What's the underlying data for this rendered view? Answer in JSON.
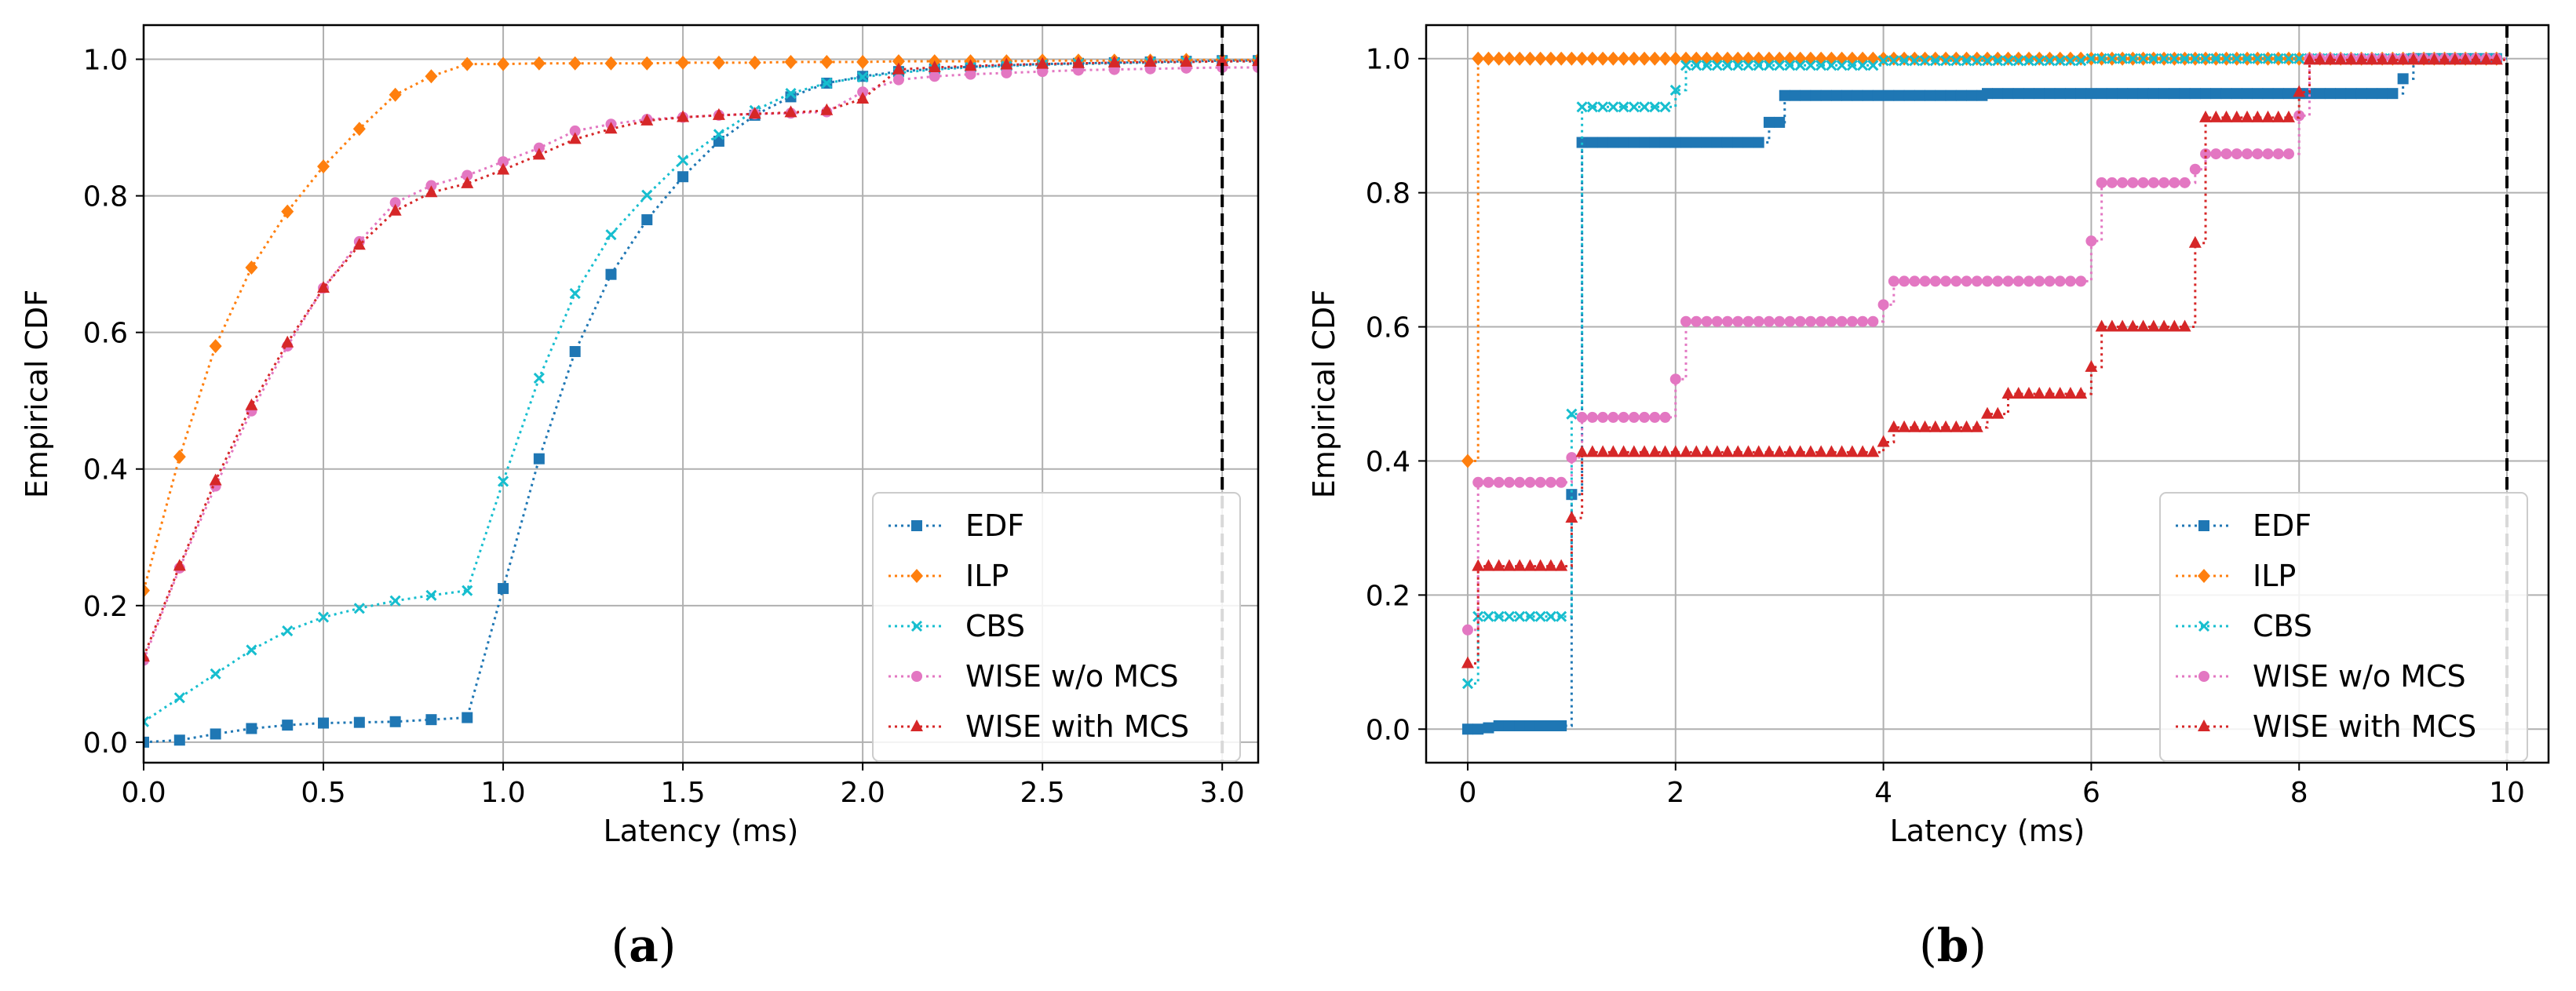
{
  "colors": {
    "EDF": "#1f77b4",
    "ILP": "#ff7f0e",
    "CBS": "#17becf",
    "WISE w/o MCS": "#e377c2",
    "WISE with MCS": "#d62728",
    "grid": "#b0b0b0",
    "deadline": "#000000"
  },
  "markers": {
    "EDF": "square",
    "ILP": "diamond",
    "CBS": "x",
    "WISE w/o MCS": "circle",
    "WISE with MCS": "triangle"
  },
  "chart_data": [
    {
      "type": "line",
      "panel_label": "a",
      "xlabel": "Latency (ms)",
      "ylabel": "Empirical CDF",
      "xlim": [
        0,
        3.1
      ],
      "ylim": [
        -0.03,
        1.05
      ],
      "xticks": [
        0,
        0.5,
        1.0,
        1.5,
        2.0,
        2.5,
        3.0
      ],
      "xtick_labels": [
        "0.0",
        "0.5",
        "1.0",
        "1.5",
        "2.0",
        "2.5",
        "3.0"
      ],
      "yticks": [
        0,
        0.2,
        0.4,
        0.6,
        0.8,
        1.0
      ],
      "ytick_labels": [
        "0.0",
        "0.2",
        "0.4",
        "0.6",
        "0.8",
        "1.0"
      ],
      "grid": true,
      "legend_position": "lower-right",
      "deadline_x": 3.0,
      "series": [
        {
          "name": "EDF",
          "x": [
            0,
            0.1,
            0.2,
            0.3,
            0.4,
            0.5,
            0.6,
            0.7,
            0.8,
            0.9,
            1.0,
            1.1,
            1.2,
            1.3,
            1.4,
            1.5,
            1.6,
            1.7,
            1.8,
            1.9,
            2.0,
            2.1,
            2.2,
            2.3,
            2.4,
            2.5,
            2.6,
            2.7,
            2.8,
            2.9,
            3.0,
            3.1
          ],
          "y": [
            0,
            0.003,
            0.012,
            0.02,
            0.025,
            0.028,
            0.029,
            0.03,
            0.033,
            0.036,
            0.225,
            0.415,
            0.572,
            0.685,
            0.765,
            0.828,
            0.88,
            0.918,
            0.945,
            0.965,
            0.975,
            0.982,
            0.986,
            0.989,
            0.991,
            0.993,
            0.994,
            0.995,
            0.996,
            0.997,
            0.998,
            0.998
          ]
        },
        {
          "name": "ILP",
          "x": [
            0,
            0.1,
            0.2,
            0.3,
            0.4,
            0.5,
            0.6,
            0.7,
            0.8,
            0.9,
            1.0,
            1.1,
            1.2,
            1.3,
            1.4,
            1.5,
            1.6,
            1.7,
            1.8,
            1.9,
            2.0,
            2.1,
            2.2,
            2.3,
            2.4,
            2.5,
            2.6,
            2.7,
            2.8,
            2.9,
            3.0,
            3.1
          ],
          "y": [
            0.222,
            0.418,
            0.58,
            0.695,
            0.777,
            0.843,
            0.898,
            0.948,
            0.975,
            0.993,
            0.993,
            0.994,
            0.994,
            0.994,
            0.994,
            0.995,
            0.995,
            0.995,
            0.996,
            0.996,
            0.996,
            0.997,
            0.997,
            0.997,
            0.997,
            0.998,
            0.998,
            0.998,
            0.998,
            0.999,
            0.999,
            0.999
          ]
        },
        {
          "name": "CBS",
          "x": [
            0,
            0.1,
            0.2,
            0.3,
            0.4,
            0.5,
            0.6,
            0.7,
            0.8,
            0.9,
            1.0,
            1.1,
            1.2,
            1.3,
            1.4,
            1.5,
            1.6,
            1.7,
            1.8,
            1.9,
            2.0,
            2.1,
            2.2,
            2.3,
            2.4,
            2.5,
            2.6,
            2.7,
            2.8,
            2.9,
            3.0,
            3.1
          ],
          "y": [
            0.03,
            0.065,
            0.1,
            0.135,
            0.163,
            0.183,
            0.196,
            0.207,
            0.215,
            0.222,
            0.382,
            0.533,
            0.657,
            0.743,
            0.801,
            0.852,
            0.89,
            0.925,
            0.95,
            0.965,
            0.974,
            0.98,
            0.985,
            0.988,
            0.99,
            0.992,
            0.993,
            0.994,
            0.995,
            0.996,
            0.997,
            0.997
          ]
        },
        {
          "name": "WISE w/o MCS",
          "x": [
            0,
            0.1,
            0.2,
            0.3,
            0.4,
            0.5,
            0.6,
            0.7,
            0.8,
            0.9,
            1.0,
            1.1,
            1.2,
            1.3,
            1.4,
            1.5,
            1.6,
            1.7,
            1.8,
            1.9,
            2.0,
            2.1,
            2.2,
            2.3,
            2.4,
            2.5,
            2.6,
            2.7,
            2.8,
            2.9,
            3.0,
            3.1
          ],
          "y": [
            0.12,
            0.255,
            0.375,
            0.485,
            0.58,
            0.665,
            0.733,
            0.79,
            0.815,
            0.83,
            0.85,
            0.87,
            0.895,
            0.905,
            0.912,
            0.915,
            0.918,
            0.92,
            0.921,
            0.923,
            0.952,
            0.97,
            0.975,
            0.978,
            0.98,
            0.982,
            0.984,
            0.985,
            0.986,
            0.987,
            0.988,
            0.988
          ]
        },
        {
          "name": "WISE with MCS",
          "x": [
            0,
            0.1,
            0.2,
            0.3,
            0.4,
            0.5,
            0.6,
            0.7,
            0.8,
            0.9,
            1.0,
            1.1,
            1.2,
            1.3,
            1.4,
            1.5,
            1.6,
            1.7,
            1.8,
            1.9,
            2.0,
            2.1,
            2.2,
            2.3,
            2.4,
            2.5,
            2.6,
            2.7,
            2.8,
            2.9,
            3.0,
            3.1
          ],
          "y": [
            0.125,
            0.258,
            0.383,
            0.493,
            0.585,
            0.665,
            0.728,
            0.778,
            0.805,
            0.818,
            0.838,
            0.86,
            0.883,
            0.898,
            0.91,
            0.915,
            0.918,
            0.92,
            0.922,
            0.925,
            0.942,
            0.985,
            0.988,
            0.99,
            0.992,
            0.993,
            0.994,
            0.995,
            0.996,
            0.996,
            0.997,
            0.997
          ]
        }
      ]
    },
    {
      "type": "line",
      "panel_label": "b",
      "xlabel": "Latency (ms)",
      "ylabel": "Empirical CDF",
      "xlim": [
        -0.4,
        10.4
      ],
      "ylim": [
        -0.05,
        1.05
      ],
      "xticks": [
        0,
        2,
        4,
        6,
        8,
        10
      ],
      "xtick_labels": [
        "0",
        "2",
        "4",
        "6",
        "8",
        "10"
      ],
      "yticks": [
        0,
        0.2,
        0.4,
        0.6,
        0.8,
        1.0
      ],
      "ytick_labels": [
        "0.0",
        "0.2",
        "0.4",
        "0.6",
        "0.8",
        "1.0"
      ],
      "grid": true,
      "legend_position": "lower-right",
      "deadline_x": 10,
      "marker_step": 0.1,
      "series": [
        {
          "name": "EDF",
          "steps": [
            [
              0,
              0
            ],
            [
              0.2,
              0.002
            ],
            [
              0.3,
              0.005
            ],
            [
              1.0,
              0.35
            ],
            [
              1.1,
              0.875
            ],
            [
              2.9,
              0.905
            ],
            [
              3.05,
              0.945
            ],
            [
              5.0,
              0.948
            ],
            [
              9.0,
              0.97
            ],
            [
              9.1,
              1.0
            ]
          ],
          "x_end": 10.0
        },
        {
          "name": "ILP",
          "steps": [
            [
              0,
              0.4
            ],
            [
              0.1,
              1.0
            ]
          ],
          "x_end": 10.0
        },
        {
          "name": "CBS",
          "steps": [
            [
              0,
              0.068
            ],
            [
              0.1,
              0.168
            ],
            [
              1.0,
              0.47
            ],
            [
              1.1,
              0.928
            ],
            [
              2.0,
              0.953
            ],
            [
              2.1,
              0.99
            ],
            [
              4.0,
              0.997
            ],
            [
              6.0,
              1.0
            ]
          ],
          "x_end": 10.0
        },
        {
          "name": "WISE w/o MCS",
          "steps": [
            [
              0,
              0.148
            ],
            [
              0.1,
              0.368
            ],
            [
              1.0,
              0.405
            ],
            [
              1.1,
              0.465
            ],
            [
              2.0,
              0.522
            ],
            [
              2.1,
              0.608
            ],
            [
              4.0,
              0.633
            ],
            [
              4.1,
              0.668
            ],
            [
              6.0,
              0.728
            ],
            [
              6.1,
              0.815
            ],
            [
              7.0,
              0.835
            ],
            [
              7.1,
              0.858
            ],
            [
              8.0,
              0.915
            ],
            [
              8.1,
              1.0
            ]
          ],
          "x_end": 10.0
        },
        {
          "name": "WISE with MCS",
          "steps": [
            [
              0,
              0.098
            ],
            [
              0.1,
              0.243
            ],
            [
              1.0,
              0.315
            ],
            [
              1.1,
              0.413
            ],
            [
              4.0,
              0.428
            ],
            [
              4.1,
              0.45
            ],
            [
              5.0,
              0.47
            ],
            [
              5.2,
              0.5
            ],
            [
              6.0,
              0.54
            ],
            [
              6.1,
              0.6
            ],
            [
              7.0,
              0.725
            ],
            [
              7.1,
              0.912
            ],
            [
              8.0,
              0.95
            ],
            [
              8.1,
              0.998
            ]
          ],
          "x_end": 10.0
        }
      ]
    }
  ]
}
